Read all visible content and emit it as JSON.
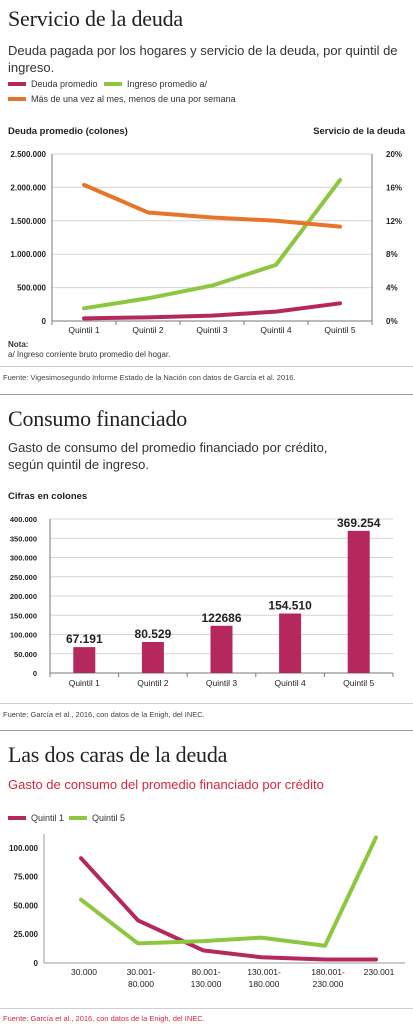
{
  "section1": {
    "title": "Servicio de la deuda",
    "subtitle": "Deuda pagada por los hogares y servicio de la deuda, por quintil de ingreso.",
    "legend": [
      {
        "label": "Deuda promedio",
        "color": "#b5285e"
      },
      {
        "label": "Ingreso promedio a/",
        "color": "#8dc63f"
      },
      {
        "label": "Más de una vez al mes, menos de una por semana",
        "color": "#e8742a"
      }
    ],
    "left_axis_title": "Deuda promedio (colones)",
    "right_axis_title": "Servicio de la deuda",
    "note_title": "Nota:",
    "note_text": "a/ Ingreso corriente bruto promedio del hogar.",
    "source": "Fuente: Vigesimosegundo Informe Estado de la Nación con datos de García et al. 2016."
  },
  "section2": {
    "title": "Consumo financiado",
    "subtitle_line1": "Gasto de consumo del promedio financiado por crédito,",
    "subtitle_line2": "según quintil de ingreso.",
    "axis_title": "Cifras en colones",
    "source": "Fuente: García et al., 2016, con datos de la Enigh, del INEC."
  },
  "section3": {
    "title": "Las dos caras de la deuda",
    "subtitle": "Gasto de consumo del promedio financiado por crédito",
    "subtitle_color": "#d7263d",
    "legend": [
      {
        "label": "Quintil 1",
        "color": "#b5285e"
      },
      {
        "label": "Quintil 5",
        "color": "#8dc63f"
      }
    ],
    "source": "Fuente: García et al., 2016, con datos de la Enigh, del INEC.",
    "source_color": "#d7263d"
  },
  "chart_data": [
    {
      "type": "line",
      "title": "Servicio de la deuda",
      "categories": [
        "Quintil 1",
        "Quintil 2",
        "Quintil 3",
        "Quintil 4",
        "Quintil 5"
      ],
      "ylim": [
        0,
        2500000
      ],
      "yticks": [
        "0",
        "500.000",
        "1.000.000",
        "1.500.000",
        "2.000.000",
        "2.500.000"
      ],
      "y2lim": [
        0,
        20
      ],
      "y2ticks": [
        "0%",
        "4%",
        "8%",
        "12%",
        "16%",
        "20%"
      ],
      "ylabel": "Deuda promedio (colones)",
      "y2label": "Servicio de la deuda",
      "grid": true,
      "series": [
        {
          "name": "Deuda promedio",
          "axis": "left",
          "color": "#b5285e",
          "values": [
            40000,
            55000,
            80000,
            140000,
            265000
          ]
        },
        {
          "name": "Ingreso promedio a/",
          "axis": "left",
          "color": "#8dc63f",
          "values": [
            190000,
            340000,
            530000,
            840000,
            2110000
          ]
        },
        {
          "name": "Más de una vez al mes, menos de una por semana",
          "axis": "right",
          "color": "#e8742a",
          "values": [
            16.3,
            13.0,
            12.4,
            12.0,
            11.3
          ]
        }
      ]
    },
    {
      "type": "bar",
      "title": "Consumo financiado",
      "ylabel": "Cifras en colones",
      "categories": [
        "Quintil 1",
        "Quintil 2",
        "Quintil 3",
        "Quintil 4",
        "Quintil 5"
      ],
      "values": [
        67191,
        80529,
        122686,
        154510,
        369254
      ],
      "labels": [
        "67.191",
        "80.529",
        "122686",
        "154.510",
        "369.254"
      ],
      "ylim": [
        0,
        400000
      ],
      "yticks": [
        "0",
        "50.000",
        "100.000",
        "150.000",
        "200.000",
        "250.000",
        "300.000",
        "350.000",
        "400.000"
      ],
      "color": "#b5285e",
      "grid": true
    },
    {
      "type": "line",
      "title": "Las dos caras de la deuda",
      "categories": [
        "30.000",
        "30.001-\n80.000",
        "80.001-\n130.000",
        "130.001-\n180.000",
        "180.001-\n230.000",
        "230.001"
      ],
      "ylim": [
        0,
        112000
      ],
      "yticks": [
        "0",
        "25.000",
        "50.000",
        "75.000",
        "100.000"
      ],
      "grid": false,
      "series": [
        {
          "name": "Quintil 1",
          "color": "#b5285e",
          "values": [
            91000,
            37000,
            11000,
            5000,
            3000,
            3000
          ]
        },
        {
          "name": "Quintil 5",
          "color": "#8dc63f",
          "values": [
            55000,
            17000,
            19000,
            22000,
            15000,
            109000
          ]
        }
      ]
    }
  ]
}
